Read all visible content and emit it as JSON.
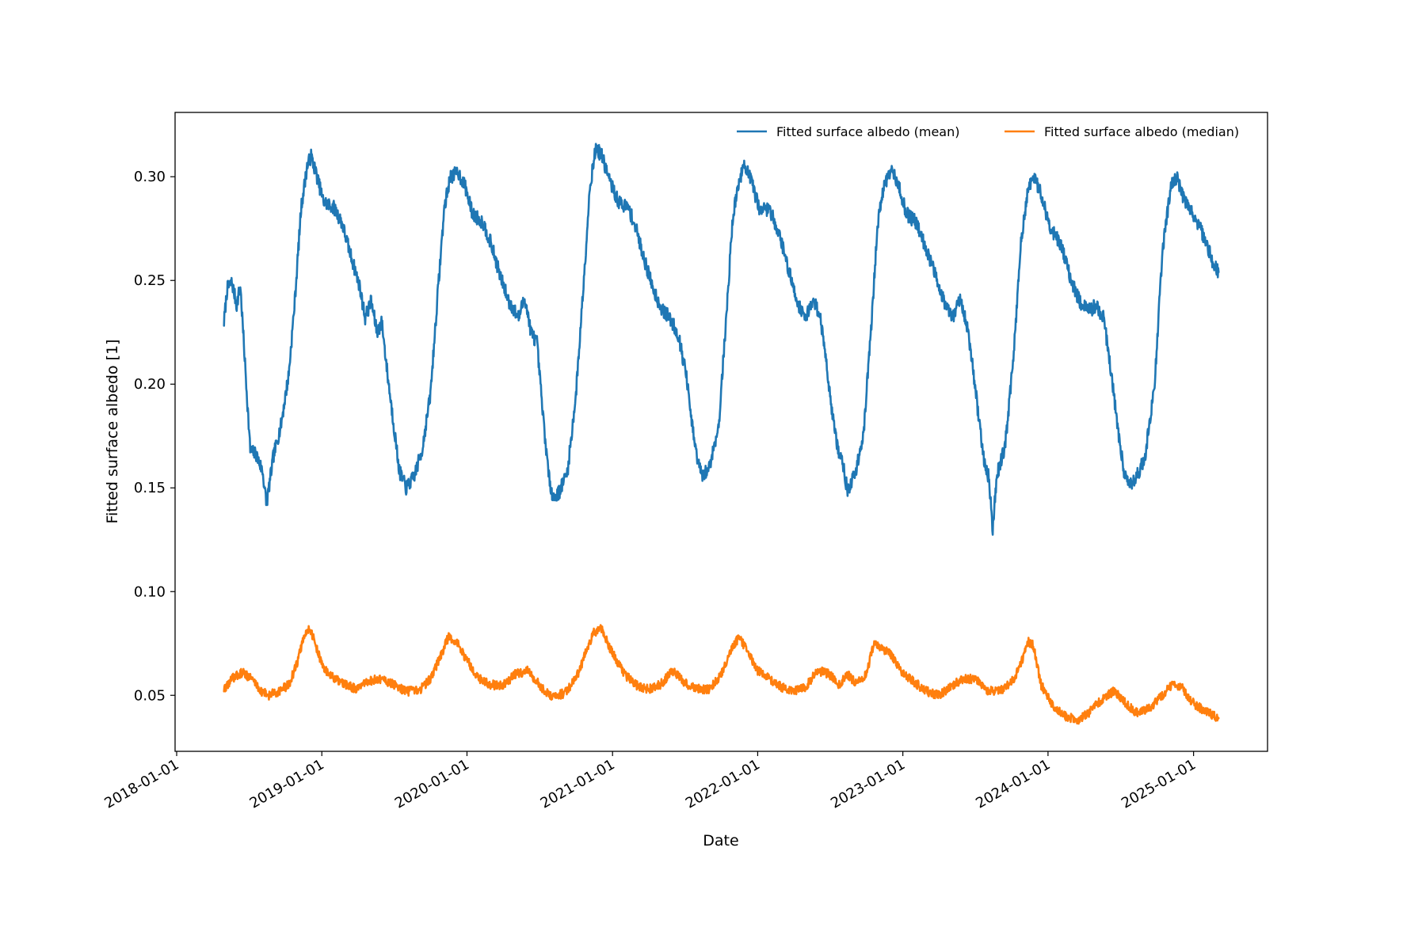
{
  "chart_data": {
    "type": "line",
    "title": "",
    "xlabel": "Date",
    "ylabel": "Fitted surface albedo [1]",
    "xlim": [
      "2017-12-28",
      "2025-07-06"
    ],
    "ylim": [
      0.023,
      0.331
    ],
    "x_ticks": [
      "2018-01-01",
      "2019-01-01",
      "2020-01-01",
      "2021-01-01",
      "2022-01-01",
      "2023-01-01",
      "2024-01-01",
      "2025-01-01"
    ],
    "y_ticks": [
      0.05,
      0.1,
      0.15,
      0.2,
      0.25,
      0.3
    ],
    "y_tick_labels": [
      "0.05",
      "0.10",
      "0.15",
      "0.20",
      "0.25",
      "0.30"
    ],
    "grid": false,
    "legend": {
      "placement": "top-right",
      "columns": 2
    },
    "series": [
      {
        "name": "Fitted surface albedo (mean)",
        "color": "#1f77b4",
        "points": [
          [
            "2018-04-30",
            0.23
          ],
          [
            "2018-05-08",
            0.246
          ],
          [
            "2018-05-20",
            0.249
          ],
          [
            "2018-06-01",
            0.238
          ],
          [
            "2018-06-10",
            0.248
          ],
          [
            "2018-06-25",
            0.2
          ],
          [
            "2018-07-05",
            0.168
          ],
          [
            "2018-07-20",
            0.166
          ],
          [
            "2018-08-05",
            0.158
          ],
          [
            "2018-08-15",
            0.142
          ],
          [
            "2018-09-01",
            0.165
          ],
          [
            "2018-09-20",
            0.18
          ],
          [
            "2018-10-10",
            0.205
          ],
          [
            "2018-10-25",
            0.24
          ],
          [
            "2018-11-10",
            0.285
          ],
          [
            "2018-11-25",
            0.305
          ],
          [
            "2018-12-05",
            0.31
          ],
          [
            "2018-12-20",
            0.3
          ],
          [
            "2019-01-05",
            0.288
          ],
          [
            "2019-02-01",
            0.285
          ],
          [
            "2019-02-20",
            0.278
          ],
          [
            "2019-03-15",
            0.262
          ],
          [
            "2019-04-05",
            0.248
          ],
          [
            "2019-04-20",
            0.232
          ],
          [
            "2019-05-05",
            0.24
          ],
          [
            "2019-05-20",
            0.225
          ],
          [
            "2019-06-01",
            0.23
          ],
          [
            "2019-06-15",
            0.205
          ],
          [
            "2019-07-01",
            0.18
          ],
          [
            "2019-07-15",
            0.158
          ],
          [
            "2019-08-01",
            0.15
          ],
          [
            "2019-08-20",
            0.155
          ],
          [
            "2019-09-10",
            0.168
          ],
          [
            "2019-10-01",
            0.195
          ],
          [
            "2019-10-20",
            0.245
          ],
          [
            "2019-11-05",
            0.285
          ],
          [
            "2019-11-20",
            0.3
          ],
          [
            "2019-12-10",
            0.302
          ],
          [
            "2019-12-28",
            0.295
          ],
          [
            "2020-01-15",
            0.282
          ],
          [
            "2020-02-10",
            0.278
          ],
          [
            "2020-03-01",
            0.268
          ],
          [
            "2020-03-25",
            0.252
          ],
          [
            "2020-04-15",
            0.24
          ],
          [
            "2020-05-10",
            0.232
          ],
          [
            "2020-05-25",
            0.242
          ],
          [
            "2020-06-10",
            0.225
          ],
          [
            "2020-06-25",
            0.22
          ],
          [
            "2020-07-10",
            0.185
          ],
          [
            "2020-07-25",
            0.155
          ],
          [
            "2020-08-05",
            0.145
          ],
          [
            "2020-08-20",
            0.148
          ],
          [
            "2020-09-10",
            0.158
          ],
          [
            "2020-10-01",
            0.195
          ],
          [
            "2020-10-20",
            0.248
          ],
          [
            "2020-11-05",
            0.295
          ],
          [
            "2020-11-20",
            0.314
          ],
          [
            "2020-12-05",
            0.31
          ],
          [
            "2020-12-25",
            0.298
          ],
          [
            "2021-01-15",
            0.288
          ],
          [
            "2021-02-10",
            0.285
          ],
          [
            "2021-03-01",
            0.275
          ],
          [
            "2021-03-25",
            0.258
          ],
          [
            "2021-04-15",
            0.245
          ],
          [
            "2021-05-05",
            0.236
          ],
          [
            "2021-05-25",
            0.232
          ],
          [
            "2021-06-15",
            0.224
          ],
          [
            "2021-07-05",
            0.205
          ],
          [
            "2021-07-20",
            0.18
          ],
          [
            "2021-08-01",
            0.165
          ],
          [
            "2021-08-15",
            0.155
          ],
          [
            "2021-09-01",
            0.16
          ],
          [
            "2021-09-25",
            0.18
          ],
          [
            "2021-10-15",
            0.235
          ],
          [
            "2021-10-30",
            0.28
          ],
          [
            "2021-11-15",
            0.298
          ],
          [
            "2021-11-30",
            0.306
          ],
          [
            "2021-12-15",
            0.298
          ],
          [
            "2022-01-05",
            0.285
          ],
          [
            "2022-02-01",
            0.284
          ],
          [
            "2022-02-25",
            0.272
          ],
          [
            "2022-03-20",
            0.255
          ],
          [
            "2022-04-10",
            0.24
          ],
          [
            "2022-04-30",
            0.232
          ],
          [
            "2022-05-20",
            0.24
          ],
          [
            "2022-06-05",
            0.235
          ],
          [
            "2022-06-20",
            0.215
          ],
          [
            "2022-07-05",
            0.19
          ],
          [
            "2022-07-20",
            0.17
          ],
          [
            "2022-08-05",
            0.16
          ],
          [
            "2022-08-15",
            0.148
          ],
          [
            "2022-09-05",
            0.158
          ],
          [
            "2022-09-25",
            0.178
          ],
          [
            "2022-10-15",
            0.232
          ],
          [
            "2022-10-30",
            0.278
          ],
          [
            "2022-11-15",
            0.296
          ],
          [
            "2022-12-01",
            0.303
          ],
          [
            "2022-12-20",
            0.297
          ],
          [
            "2023-01-10",
            0.282
          ],
          [
            "2023-02-05",
            0.278
          ],
          [
            "2023-03-01",
            0.265
          ],
          [
            "2023-03-25",
            0.252
          ],
          [
            "2023-04-15",
            0.24
          ],
          [
            "2023-05-05",
            0.232
          ],
          [
            "2023-05-25",
            0.24
          ],
          [
            "2023-06-10",
            0.23
          ],
          [
            "2023-06-25",
            0.21
          ],
          [
            "2023-07-10",
            0.185
          ],
          [
            "2023-07-25",
            0.162
          ],
          [
            "2023-08-05",
            0.155
          ],
          [
            "2023-08-15",
            0.13
          ],
          [
            "2023-08-25",
            0.156
          ],
          [
            "2023-09-15",
            0.17
          ],
          [
            "2023-10-05",
            0.21
          ],
          [
            "2023-10-25",
            0.268
          ],
          [
            "2023-11-10",
            0.292
          ],
          [
            "2023-11-25",
            0.3
          ],
          [
            "2023-12-15",
            0.292
          ],
          [
            "2024-01-05",
            0.276
          ],
          [
            "2024-02-01",
            0.268
          ],
          [
            "2024-02-25",
            0.252
          ],
          [
            "2024-03-20",
            0.24
          ],
          [
            "2024-04-10",
            0.235
          ],
          [
            "2024-05-01",
            0.238
          ],
          [
            "2024-05-20",
            0.232
          ],
          [
            "2024-06-05",
            0.21
          ],
          [
            "2024-06-25",
            0.178
          ],
          [
            "2024-07-10",
            0.158
          ],
          [
            "2024-07-25",
            0.152
          ],
          [
            "2024-08-10",
            0.155
          ],
          [
            "2024-09-01",
            0.165
          ],
          [
            "2024-09-25",
            0.2
          ],
          [
            "2024-10-15",
            0.265
          ],
          [
            "2024-11-05",
            0.295
          ],
          [
            "2024-11-20",
            0.3
          ],
          [
            "2024-12-10",
            0.288
          ],
          [
            "2025-01-05",
            0.28
          ],
          [
            "2025-01-30",
            0.27
          ],
          [
            "2025-02-20",
            0.258
          ],
          [
            "2025-03-05",
            0.254
          ]
        ]
      },
      {
        "name": "Fitted surface albedo (median)",
        "color": "#ff7f0e",
        "points": [
          [
            "2018-04-30",
            0.053
          ],
          [
            "2018-05-20",
            0.058
          ],
          [
            "2018-06-15",
            0.061
          ],
          [
            "2018-07-10",
            0.058
          ],
          [
            "2018-08-01",
            0.052
          ],
          [
            "2018-08-20",
            0.05
          ],
          [
            "2018-09-15",
            0.052
          ],
          [
            "2018-10-10",
            0.055
          ],
          [
            "2018-10-30",
            0.065
          ],
          [
            "2018-11-15",
            0.077
          ],
          [
            "2018-12-01",
            0.083
          ],
          [
            "2018-12-15",
            0.075
          ],
          [
            "2019-01-05",
            0.063
          ],
          [
            "2019-02-01",
            0.058
          ],
          [
            "2019-03-01",
            0.055
          ],
          [
            "2019-04-01",
            0.053
          ],
          [
            "2019-05-01",
            0.057
          ],
          [
            "2019-06-01",
            0.058
          ],
          [
            "2019-07-01",
            0.055
          ],
          [
            "2019-08-01",
            0.052
          ],
          [
            "2019-09-01",
            0.052
          ],
          [
            "2019-10-01",
            0.058
          ],
          [
            "2019-10-25",
            0.068
          ],
          [
            "2019-11-15",
            0.078
          ],
          [
            "2019-12-05",
            0.076
          ],
          [
            "2019-12-28",
            0.068
          ],
          [
            "2020-02-01",
            0.058
          ],
          [
            "2020-03-01",
            0.055
          ],
          [
            "2020-04-01",
            0.055
          ],
          [
            "2020-05-01",
            0.06
          ],
          [
            "2020-06-01",
            0.062
          ],
          [
            "2020-07-01",
            0.055
          ],
          [
            "2020-08-01",
            0.049
          ],
          [
            "2020-09-01",
            0.051
          ],
          [
            "2020-10-01",
            0.058
          ],
          [
            "2020-10-25",
            0.07
          ],
          [
            "2020-11-15",
            0.08
          ],
          [
            "2020-12-05",
            0.082
          ],
          [
            "2020-12-25",
            0.073
          ],
          [
            "2021-02-01",
            0.06
          ],
          [
            "2021-03-01",
            0.055
          ],
          [
            "2021-04-01",
            0.053
          ],
          [
            "2021-05-01",
            0.055
          ],
          [
            "2021-06-01",
            0.062
          ],
          [
            "2021-07-01",
            0.056
          ],
          [
            "2021-08-01",
            0.053
          ],
          [
            "2021-09-01",
            0.053
          ],
          [
            "2021-10-01",
            0.06
          ],
          [
            "2021-10-25",
            0.072
          ],
          [
            "2021-11-15",
            0.078
          ],
          [
            "2021-12-05",
            0.072
          ],
          [
            "2022-01-01",
            0.062
          ],
          [
            "2022-02-01",
            0.058
          ],
          [
            "2022-03-01",
            0.054
          ],
          [
            "2022-04-01",
            0.052
          ],
          [
            "2022-05-01",
            0.054
          ],
          [
            "2022-06-01",
            0.062
          ],
          [
            "2022-07-01",
            0.06
          ],
          [
            "2022-07-25",
            0.055
          ],
          [
            "2022-08-15",
            0.06
          ],
          [
            "2022-09-05",
            0.056
          ],
          [
            "2022-10-01",
            0.06
          ],
          [
            "2022-10-20",
            0.075
          ],
          [
            "2022-11-10",
            0.072
          ],
          [
            "2022-12-01",
            0.07
          ],
          [
            "2022-12-25",
            0.062
          ],
          [
            "2023-02-01",
            0.056
          ],
          [
            "2023-03-01",
            0.052
          ],
          [
            "2023-04-01",
            0.05
          ],
          [
            "2023-05-01",
            0.054
          ],
          [
            "2023-06-01",
            0.058
          ],
          [
            "2023-07-01",
            0.058
          ],
          [
            "2023-08-01",
            0.052
          ],
          [
            "2023-09-01",
            0.052
          ],
          [
            "2023-10-01",
            0.056
          ],
          [
            "2023-10-25",
            0.065
          ],
          [
            "2023-11-10",
            0.076
          ],
          [
            "2023-11-25",
            0.074
          ],
          [
            "2023-12-15",
            0.055
          ],
          [
            "2024-01-15",
            0.044
          ],
          [
            "2024-02-15",
            0.04
          ],
          [
            "2024-03-15",
            0.038
          ],
          [
            "2024-04-15",
            0.042
          ],
          [
            "2024-05-15",
            0.048
          ],
          [
            "2024-06-15",
            0.052
          ],
          [
            "2024-07-15",
            0.046
          ],
          [
            "2024-08-15",
            0.041
          ],
          [
            "2024-09-15",
            0.044
          ],
          [
            "2024-10-15",
            0.05
          ],
          [
            "2024-11-10",
            0.056
          ],
          [
            "2024-12-01",
            0.054
          ],
          [
            "2025-01-01",
            0.046
          ],
          [
            "2025-02-01",
            0.042
          ],
          [
            "2025-03-05",
            0.039
          ]
        ]
      }
    ]
  }
}
